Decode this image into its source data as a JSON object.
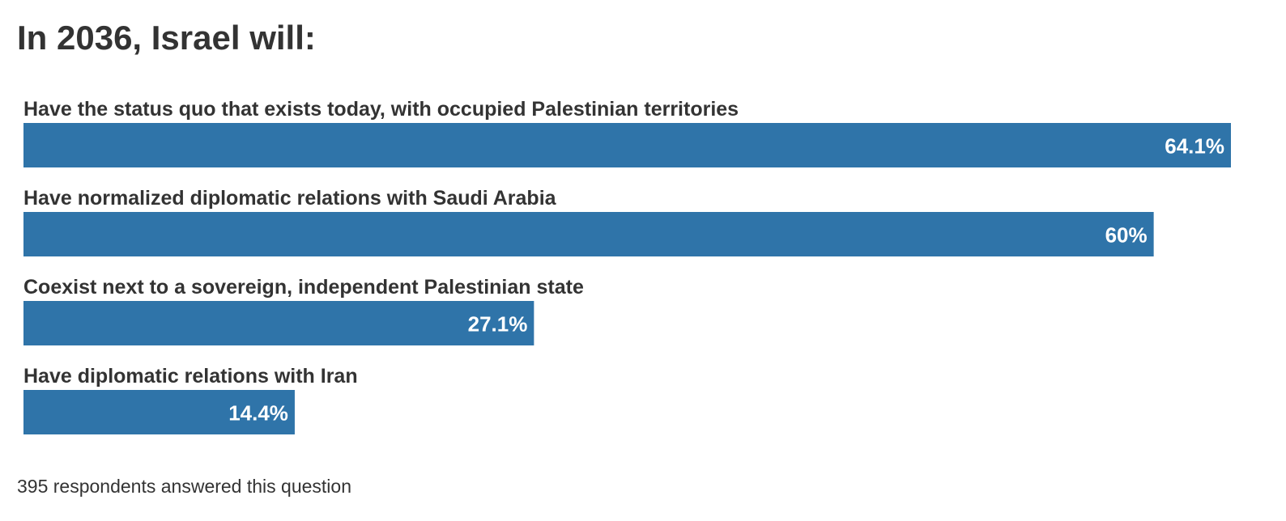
{
  "chart_data": {
    "type": "bar",
    "orientation": "horizontal",
    "title": "In 2036, Israel will:",
    "categories": [
      "Have the status quo that exists today, with occupied Palestinian territories",
      "Have normalized diplomatic relations with Saudi Arabia",
      "Coexist next to a sovereign, independent Palestinian state",
      "Have diplomatic relations with Iran"
    ],
    "values": [
      64.1,
      60,
      27.1,
      14.4
    ],
    "value_labels": [
      "64.1%",
      "60%",
      "27.1%",
      "14.4%"
    ],
    "unit": "%",
    "bar_color": "#2f74a9",
    "xlim": [
      0,
      64.1
    ],
    "grid": false,
    "legend": "none",
    "footnote": "395 respondents answered this question"
  }
}
